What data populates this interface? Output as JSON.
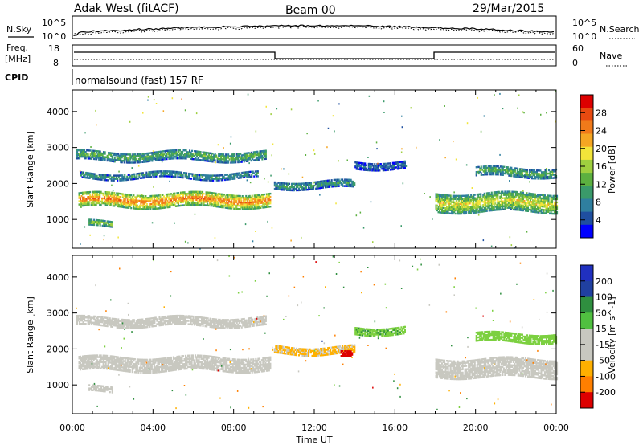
{
  "header": {
    "station": "Adak West (fitACF)",
    "beam": "Beam 00",
    "date": "29/Mar/2015"
  },
  "panels": {
    "nsky": {
      "left_label": "N.Sky",
      "right_label": "N.Search",
      "left_ticks": [
        "10^5",
        "10^0"
      ],
      "right_ticks": [
        "10^5",
        "10^0"
      ]
    },
    "freq": {
      "left_label_top": "Freq.",
      "left_label_unit": "[MHz]",
      "left_ticks": [
        "18",
        "8"
      ],
      "right_label": "Nave",
      "right_ticks": [
        "60",
        "0"
      ]
    },
    "cpid": {
      "label": "CPID",
      "text": "normalsound (fast) 157 RF"
    }
  },
  "colors": {
    "power_scale": [
      "#0000ff",
      "#1f4fa0",
      "#2f7f9f",
      "#3a9a6a",
      "#5cb040",
      "#9fcf3f",
      "#f2e53a",
      "#f5a623",
      "#f07a1a",
      "#e84a10",
      "#dd0000"
    ],
    "velocity_scale": [
      "#dd0000",
      "#ff7f00",
      "#ffb000",
      "#c8c8c0",
      "#c8c8c0",
      "#50c040",
      "#2f8f3f",
      "#2040a0",
      "#2030c0"
    ],
    "ground_scatter": "#c8c8c0",
    "axis": "#000000"
  },
  "chart_data": [
    {
      "type": "heatmap",
      "name": "power",
      "ylabel": "Slant Range [km]",
      "x_ticks": [
        "00:00",
        "04:00",
        "08:00",
        "12:00",
        "16:00",
        "20:00",
        "00:00"
      ],
      "y_ticks": [
        "1000",
        "2000",
        "3000",
        "4000"
      ],
      "ylim": [
        200,
        4600
      ],
      "colorbar": {
        "label": "Power [dB]",
        "ticks": [
          "4",
          "8",
          "12",
          "16",
          "20",
          "24",
          "28"
        ],
        "range": [
          0,
          30
        ]
      },
      "bands": [
        {
          "t0": 0.3,
          "t1": 9.8,
          "r_center": 1520,
          "r_width": 380,
          "power": 24
        },
        {
          "t0": 0.2,
          "t1": 9.6,
          "r_center": 2750,
          "r_width": 260,
          "power": 12
        },
        {
          "t0": 0.4,
          "t1": 9.2,
          "r_center": 2200,
          "r_width": 150,
          "power": 10
        },
        {
          "t0": 10.0,
          "t1": 14.0,
          "r_center": 1950,
          "r_width": 200,
          "power": 10
        },
        {
          "t0": 14.0,
          "t1": 16.5,
          "r_center": 2500,
          "r_width": 200,
          "power": 6
        },
        {
          "t0": 18.0,
          "t1": 24.0,
          "r_center": 1450,
          "r_width": 500,
          "power": 18
        },
        {
          "t0": 20.0,
          "t1": 24.0,
          "r_center": 2300,
          "r_width": 250,
          "power": 12
        },
        {
          "t0": 0.8,
          "t1": 2.0,
          "r_center": 850,
          "r_width": 140,
          "power": 16
        }
      ]
    },
    {
      "type": "heatmap",
      "name": "velocity",
      "xlabel": "Time UT",
      "ylabel": "Slant Range [km]",
      "x_ticks": [
        "00:00",
        "04:00",
        "08:00",
        "12:00",
        "16:00",
        "20:00",
        "00:00"
      ],
      "y_ticks": [
        "1000",
        "2000",
        "3000",
        "4000"
      ],
      "ylim": [
        200,
        4600
      ],
      "colorbar": {
        "label": "Velocity [m s^-1]",
        "ticks": [
          "200",
          "100",
          "50",
          "15",
          "-15",
          "-50",
          "-100",
          "-200"
        ],
        "range": [
          -250,
          250
        ]
      },
      "bands": [
        {
          "t0": 0.3,
          "t1": 9.8,
          "r_center": 1580,
          "r_width": 400,
          "velocity": 0
        },
        {
          "t0": 0.2,
          "t1": 9.6,
          "r_center": 2750,
          "r_width": 260,
          "velocity": 0
        },
        {
          "t0": 10.0,
          "t1": 14.0,
          "r_center": 1950,
          "r_width": 200,
          "velocity": -20
        },
        {
          "t0": 13.3,
          "t1": 13.9,
          "r_center": 1800,
          "r_width": 150,
          "velocity": -220
        },
        {
          "t0": 14.0,
          "t1": 16.5,
          "r_center": 2500,
          "r_width": 200,
          "velocity": 40
        },
        {
          "t0": 18.0,
          "t1": 24.0,
          "r_center": 1450,
          "r_width": 500,
          "velocity": 0
        },
        {
          "t0": 20.0,
          "t1": 24.0,
          "r_center": 2300,
          "r_width": 250,
          "velocity": 30
        },
        {
          "t0": 0.8,
          "t1": 2.0,
          "r_center": 850,
          "r_width": 140,
          "velocity": 0
        }
      ]
    }
  ]
}
